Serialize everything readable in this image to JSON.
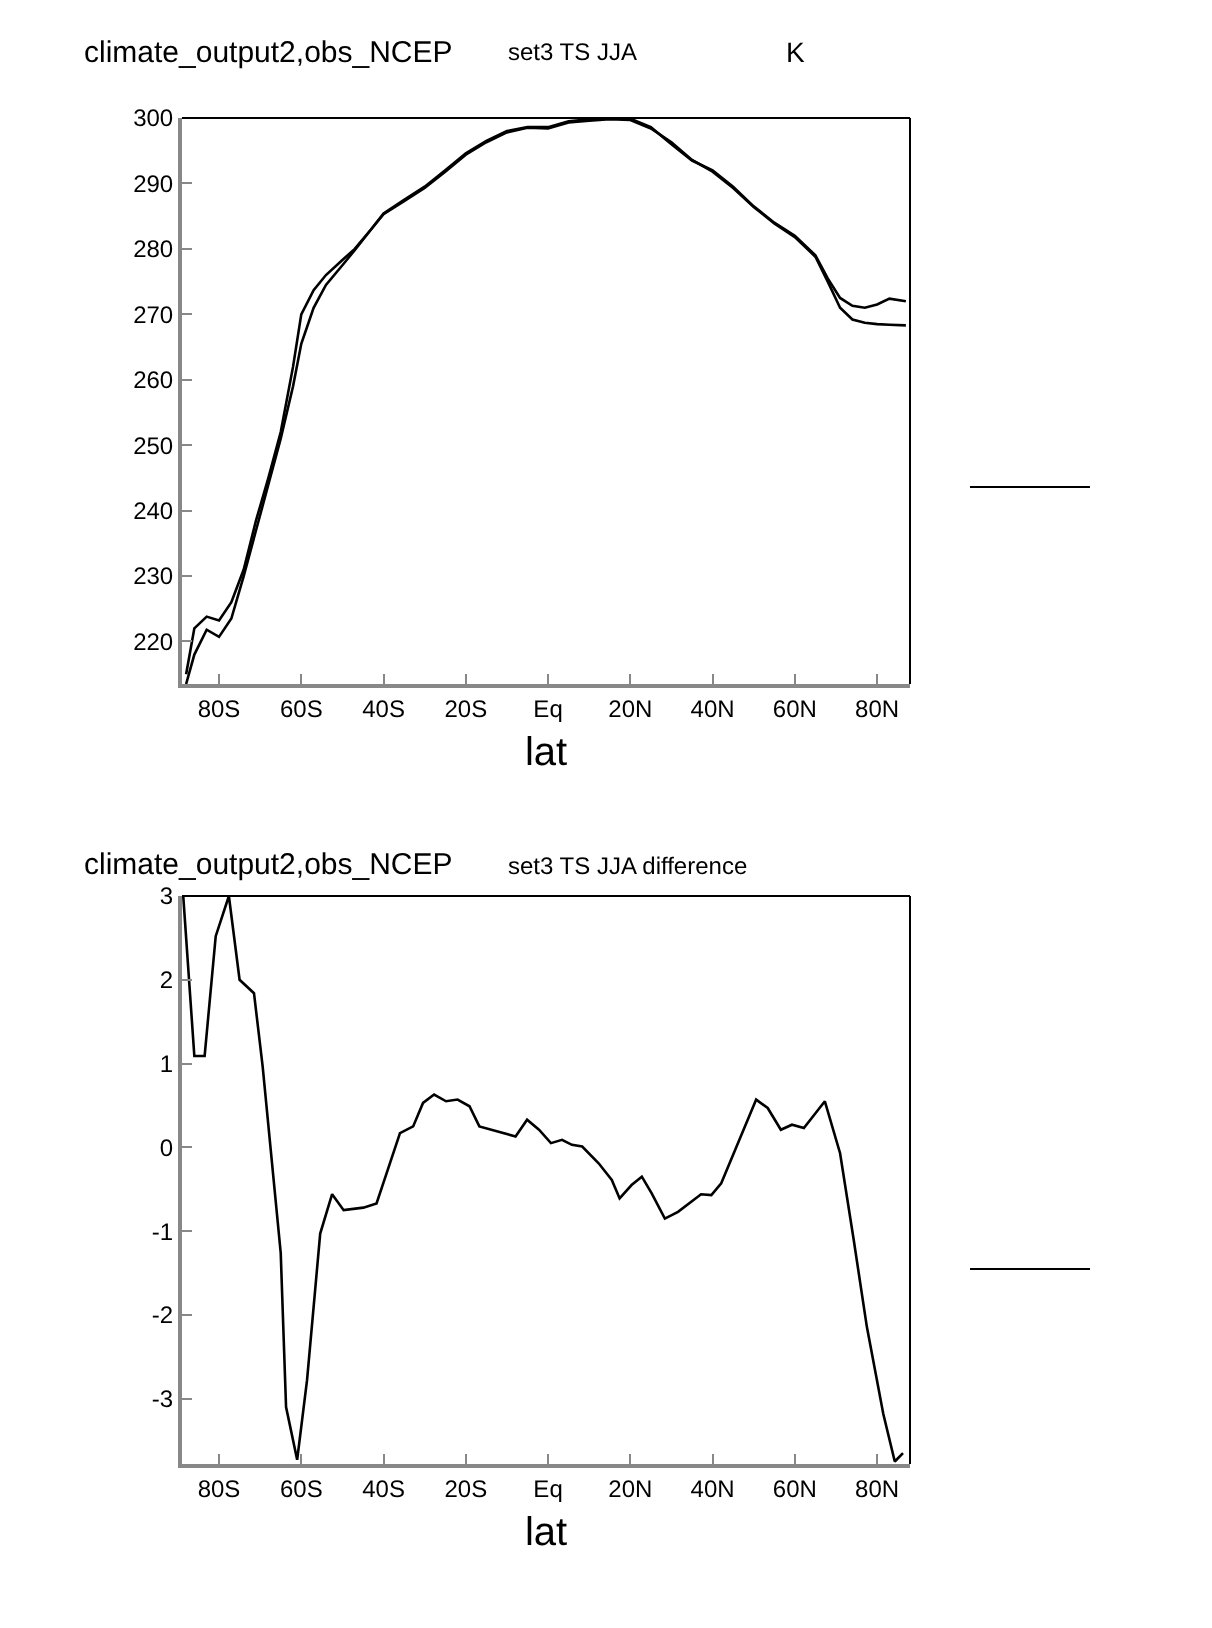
{
  "chart_data": [
    {
      "type": "line",
      "title": "climate_output2,obs_NCEP",
      "subtitle": "set3 TS JJA",
      "annotations": [
        "K"
      ],
      "xlabel": "lat",
      "x": [
        -88,
        -86,
        -83,
        -80,
        -77,
        -74,
        -71,
        -68,
        -65,
        -62,
        -60,
        -57,
        -54,
        -50,
        -47,
        -43,
        -40,
        -35,
        -30,
        -25,
        -20,
        -15,
        -10,
        -5,
        0,
        5,
        10,
        15,
        20,
        25,
        30,
        35,
        40,
        45,
        50,
        55,
        60,
        65,
        68,
        71,
        74,
        77,
        80,
        83,
        87
      ],
      "series": [
        {
          "color": "#000000",
          "values": [
            215,
            222,
            223.8,
            223.2,
            226,
            231,
            238.5,
            245,
            252,
            262,
            270,
            273.7,
            276,
            278.3,
            280,
            283,
            285.4,
            287.5,
            289.5,
            292,
            294.6,
            296.5,
            298,
            298.6,
            298.6,
            299.5,
            299.8,
            300,
            299.9,
            298.6,
            296,
            293.5,
            292,
            289.5,
            286.5,
            284,
            282,
            279,
            275.5,
            272.5,
            271.3,
            271,
            271.5,
            272.4,
            272
          ]
        },
        {
          "color": "#000000",
          "values": [
            213.5,
            218,
            221.8,
            220.7,
            223.5,
            230,
            237,
            244,
            251,
            259,
            265.5,
            271,
            274.5,
            277.5,
            279.8,
            283,
            285.3,
            287.3,
            289.3,
            291.8,
            294.4,
            296.3,
            297.8,
            298.5,
            298.4,
            299.3,
            299.6,
            299.8,
            299.7,
            298.4,
            296.3,
            293.6,
            291.8,
            289.3,
            286.4,
            283.9,
            281.8,
            278.8,
            275,
            271,
            269.2,
            268.7,
            268.5,
            268.4,
            268.3
          ]
        }
      ],
      "xlim": [
        -89,
        88
      ],
      "xticks": [
        {
          "value": -80,
          "label": "80S"
        },
        {
          "value": -60,
          "label": "60S"
        },
        {
          "value": -40,
          "label": "40S"
        },
        {
          "value": -20,
          "label": "20S"
        },
        {
          "value": 0,
          "label": "Eq"
        },
        {
          "value": 20,
          "label": "20N"
        },
        {
          "value": 40,
          "label": "40N"
        },
        {
          "value": 60,
          "label": "60N"
        },
        {
          "value": 80,
          "label": "80N"
        }
      ],
      "ylim": [
        213.5,
        300
      ],
      "yticks": [
        220,
        230,
        240,
        250,
        260,
        270,
        280,
        290,
        300
      ],
      "grid": false
    },
    {
      "type": "line",
      "title": "climate_output2,obs_NCEP",
      "subtitle": "set3 TS JJA difference",
      "xlabel": "lat",
      "x": [
        -88.7,
        -86,
        -83.5,
        -80.8,
        -77.6,
        -75,
        -71.5,
        -69.4,
        -65,
        -63.7,
        -61,
        -58.6,
        -55.4,
        -52.5,
        -49.7,
        -44.9,
        -41.7,
        -36,
        -32.8,
        -30.4,
        -27.7,
        -24.8,
        -22,
        -19.1,
        -16.7,
        -7.9,
        -5.1,
        -2.2,
        0.7,
        3.4,
        5.8,
        8.3,
        12.3,
        15.5,
        17.4,
        20.3,
        22.8,
        25.2,
        28.4,
        31.6,
        37.2,
        39.7,
        42.1,
        50.6,
        53.4,
        56.6,
        59.3,
        62.2,
        67.3,
        71,
        74.3,
        77.5,
        81.5,
        84.3,
        86.3
      ],
      "series": [
        {
          "color": "#000000",
          "values": [
            3.0,
            1.09,
            1.09,
            2.52,
            3.0,
            2.0,
            1.84,
            0.97,
            -1.26,
            -3.1,
            -3.73,
            -2.78,
            -1.03,
            -0.56,
            -0.75,
            -0.72,
            -0.67,
            0.17,
            0.25,
            0.53,
            0.63,
            0.55,
            0.57,
            0.49,
            0.25,
            0.13,
            0.33,
            0.21,
            0.05,
            0.09,
            0.03,
            0.01,
            -0.19,
            -0.39,
            -0.61,
            -0.45,
            -0.35,
            -0.55,
            -0.85,
            -0.77,
            -0.56,
            -0.57,
            -0.43,
            0.57,
            0.47,
            0.21,
            0.27,
            0.23,
            0.55,
            -0.07,
            -1.1,
            -2.14,
            -3.18,
            -3.75,
            -3.65
          ]
        }
      ],
      "xlim": [
        -89,
        88
      ],
      "xticks": [
        {
          "value": -80,
          "label": "80S"
        },
        {
          "value": -60,
          "label": "60S"
        },
        {
          "value": -40,
          "label": "40S"
        },
        {
          "value": -20,
          "label": "20S"
        },
        {
          "value": 0,
          "label": "Eq"
        },
        {
          "value": 20,
          "label": "20N"
        },
        {
          "value": 40,
          "label": "40N"
        },
        {
          "value": 60,
          "label": "60N"
        },
        {
          "value": 80,
          "label": "80N"
        }
      ],
      "ylim": [
        -3.78,
        3.0
      ],
      "yticks": [
        3,
        2,
        1,
        0,
        -1,
        -2,
        -3
      ],
      "grid": false
    }
  ]
}
